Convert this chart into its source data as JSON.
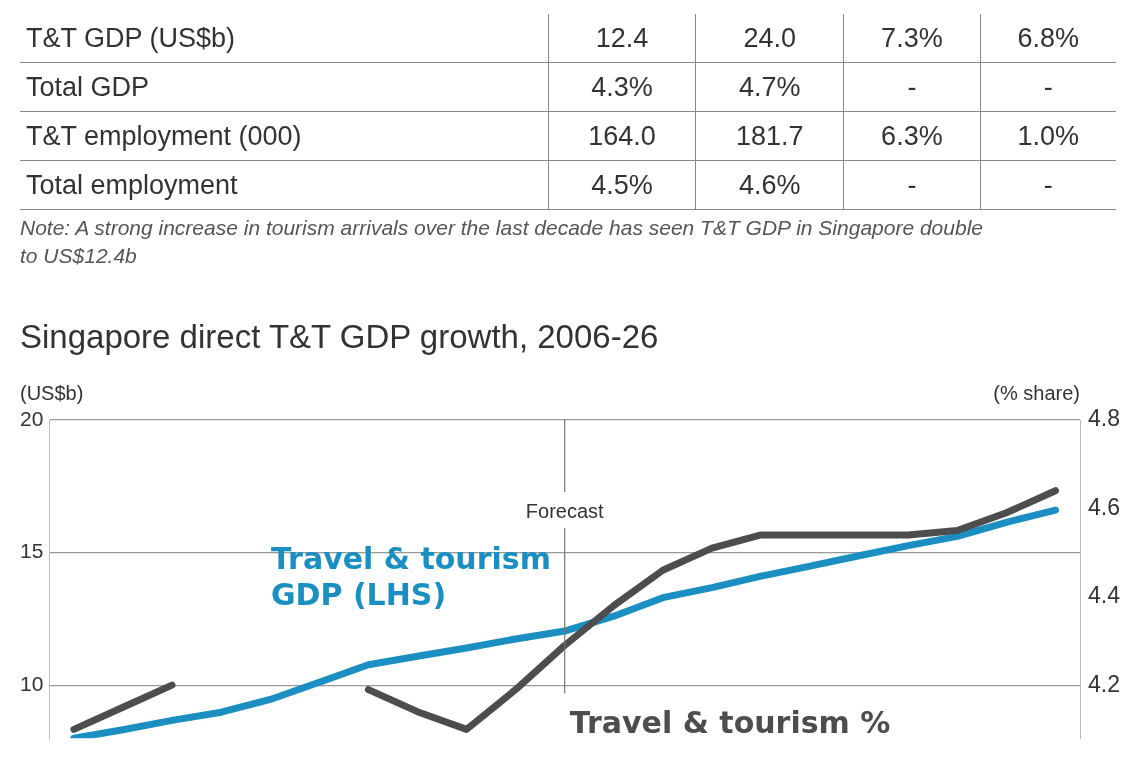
{
  "chart_data": [
    {
      "type": "other",
      "categories": [
        "T&T GDP (US$b)",
        "Total GDP",
        "T&T employment (000)",
        "Total employment"
      ],
      "series": [
        {
          "values": [
            12.4,
            4.3,
            164.0,
            4.5
          ],
          "value_labels": [
            "12.4",
            "4.3%",
            "164.0",
            "4.5%"
          ]
        },
        {
          "values": [
            24.0,
            4.7,
            181.7,
            4.6
          ],
          "value_labels": [
            "24.0",
            "4.7%",
            "181.7",
            "4.6%"
          ]
        },
        {
          "values": [
            7.3,
            null,
            6.3,
            null
          ],
          "value_labels": [
            "7.3%",
            "-",
            "6.3%",
            "-"
          ]
        },
        {
          "values": [
            6.8,
            null,
            1.0,
            null
          ],
          "value_labels": [
            "6.8%",
            "-",
            "1.0%",
            "-"
          ]
        }
      ],
      "annotations": [
        "Note: A strong increase in tourism arrivals over the last decade has seen T&T GDP in Singapore double to US$12.4b"
      ]
    },
    {
      "type": "line",
      "title": "Singapore direct T&T GDP growth, 2006-26",
      "ylabel": "(US$b)",
      "y2label": "(% share)",
      "categories": [
        null,
        null,
        null,
        null,
        null,
        null,
        null,
        null,
        null,
        null,
        null,
        null,
        null,
        null,
        null,
        null,
        null,
        null,
        null,
        null,
        null
      ],
      "ylim": [
        8,
        20
      ],
      "yticks": [
        10,
        15,
        20
      ],
      "y2lim": [
        4.08,
        4.8
      ],
      "y2ticks": [
        4.2,
        4.4,
        4.6,
        4.8
      ],
      "series": [
        {
          "name": "Travel & tourism GDP (LHS)",
          "color": "#1b8fc1",
          "values": [
            8.0,
            8.32,
            8.67,
            8.98,
            9.46,
            10.11,
            10.77,
            11.09,
            11.4,
            11.74,
            12.04,
            12.6,
            13.3,
            13.68,
            14.11,
            14.49,
            14.88,
            15.26,
            15.61,
            16.14,
            16.6
          ]
        },
        {
          "name": "Travel & tourism %",
          "color": "#4d4d4f",
          "axis": "y2",
          "values": [
            4.1,
            4.15,
            4.2,
            null,
            null,
            null,
            4.19,
            4.14,
            4.1,
            4.19,
            4.29,
            4.38,
            4.46,
            4.51,
            4.54,
            4.54,
            4.54,
            4.54,
            4.55,
            4.59,
            4.64
          ]
        }
      ],
      "annotations": [
        {
          "text": "Forecast"
        }
      ],
      "grid": "y",
      "tick_labels": "y"
    }
  ]
}
